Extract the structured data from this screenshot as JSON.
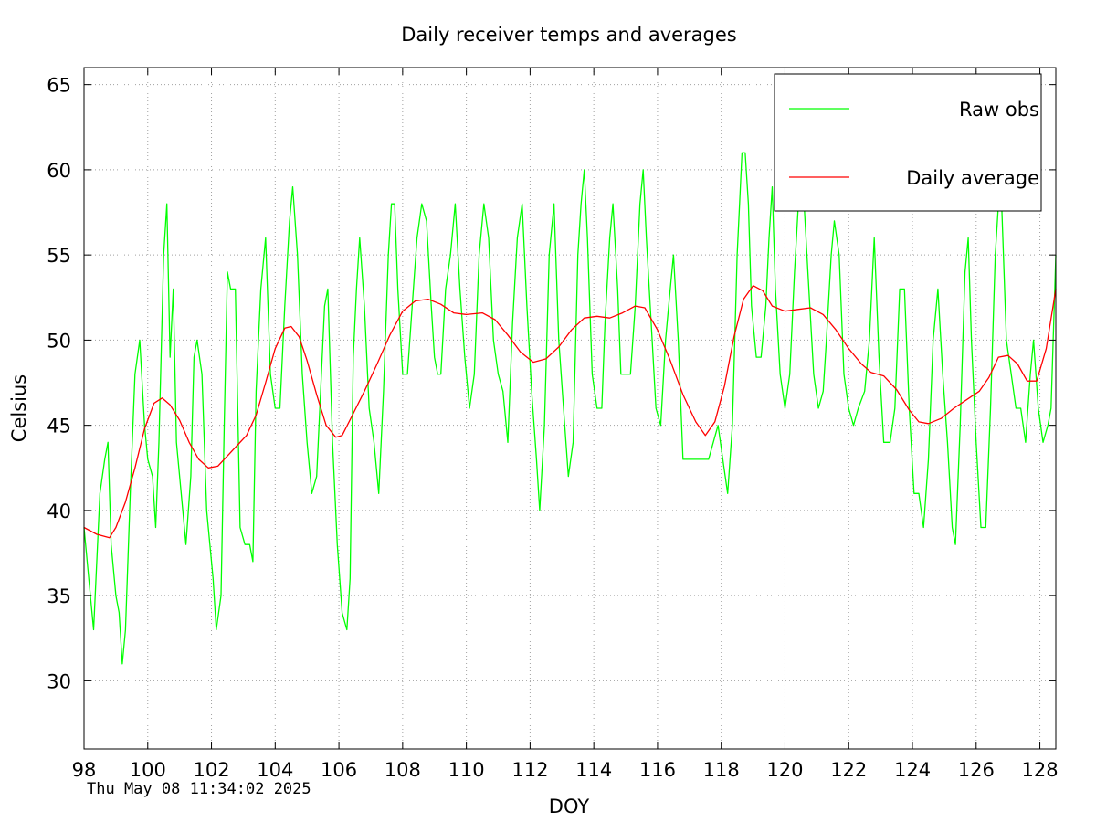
{
  "chart_data": {
    "type": "line",
    "title": "Daily receiver temps and averages",
    "xlabel": "DOY",
    "ylabel": "Celsius",
    "timestamp": "Thu May 08 11:34:02 2025",
    "xlim": [
      98,
      128.5
    ],
    "ylim": [
      26,
      66
    ],
    "xticks": [
      98,
      100,
      102,
      104,
      106,
      108,
      110,
      112,
      114,
      116,
      118,
      120,
      122,
      124,
      126,
      128
    ],
    "yticks": [
      30,
      35,
      40,
      45,
      50,
      55,
      60,
      65
    ],
    "grid": true,
    "legend_position": "top-right",
    "series": [
      {
        "name": "Raw obs",
        "color": "#00ff00",
        "points": [
          [
            98.0,
            39
          ],
          [
            98.15,
            36
          ],
          [
            98.3,
            33
          ],
          [
            98.5,
            41
          ],
          [
            98.65,
            43
          ],
          [
            98.75,
            44
          ],
          [
            98.85,
            38
          ],
          [
            99.0,
            35
          ],
          [
            99.1,
            34
          ],
          [
            99.2,
            31
          ],
          [
            99.3,
            33
          ],
          [
            99.45,
            41
          ],
          [
            99.6,
            48
          ],
          [
            99.75,
            50
          ],
          [
            99.9,
            45
          ],
          [
            100.0,
            43
          ],
          [
            100.15,
            42
          ],
          [
            100.25,
            39
          ],
          [
            100.35,
            44
          ],
          [
            100.5,
            55
          ],
          [
            100.6,
            58
          ],
          [
            100.7,
            49
          ],
          [
            100.8,
            53
          ],
          [
            100.9,
            44
          ],
          [
            101.05,
            41
          ],
          [
            101.2,
            38
          ],
          [
            101.35,
            42
          ],
          [
            101.45,
            49
          ],
          [
            101.55,
            50
          ],
          [
            101.7,
            48
          ],
          [
            101.85,
            40
          ],
          [
            101.95,
            38
          ],
          [
            102.05,
            36
          ],
          [
            102.15,
            33
          ],
          [
            102.3,
            35
          ],
          [
            102.4,
            45
          ],
          [
            102.5,
            54
          ],
          [
            102.6,
            53
          ],
          [
            102.75,
            53
          ],
          [
            102.9,
            39
          ],
          [
            103.05,
            38
          ],
          [
            103.2,
            38
          ],
          [
            103.3,
            37
          ],
          [
            103.4,
            47
          ],
          [
            103.55,
            53
          ],
          [
            103.7,
            56
          ],
          [
            103.85,
            48
          ],
          [
            104.0,
            46
          ],
          [
            104.15,
            46
          ],
          [
            104.3,
            52
          ],
          [
            104.45,
            57
          ],
          [
            104.55,
            59
          ],
          [
            104.7,
            55
          ],
          [
            104.85,
            48
          ],
          [
            105.0,
            44
          ],
          [
            105.15,
            41
          ],
          [
            105.3,
            42
          ],
          [
            105.45,
            48
          ],
          [
            105.55,
            52
          ],
          [
            105.65,
            53
          ],
          [
            105.8,
            44
          ],
          [
            105.95,
            38
          ],
          [
            106.1,
            34
          ],
          [
            106.25,
            33
          ],
          [
            106.35,
            36
          ],
          [
            106.45,
            49
          ],
          [
            106.55,
            53
          ],
          [
            106.65,
            56
          ],
          [
            106.8,
            52
          ],
          [
            106.95,
            46
          ],
          [
            107.1,
            44
          ],
          [
            107.25,
            41
          ],
          [
            107.4,
            47
          ],
          [
            107.55,
            55
          ],
          [
            107.65,
            58
          ],
          [
            107.75,
            58
          ],
          [
            107.85,
            53
          ],
          [
            108.0,
            48
          ],
          [
            108.15,
            48
          ],
          [
            108.3,
            52
          ],
          [
            108.45,
            56
          ],
          [
            108.6,
            58
          ],
          [
            108.75,
            57
          ],
          [
            108.9,
            52
          ],
          [
            109.0,
            49
          ],
          [
            109.1,
            48
          ],
          [
            109.2,
            48
          ],
          [
            109.35,
            53
          ],
          [
            109.5,
            55
          ],
          [
            109.65,
            58
          ],
          [
            109.8,
            53
          ],
          [
            109.95,
            49
          ],
          [
            110.1,
            46
          ],
          [
            110.25,
            48
          ],
          [
            110.4,
            55
          ],
          [
            110.55,
            58
          ],
          [
            110.7,
            56
          ],
          [
            110.85,
            50
          ],
          [
            111.0,
            48
          ],
          [
            111.15,
            47
          ],
          [
            111.3,
            44
          ],
          [
            111.45,
            51
          ],
          [
            111.6,
            56
          ],
          [
            111.75,
            58
          ],
          [
            111.9,
            52
          ],
          [
            112.05,
            47
          ],
          [
            112.2,
            43
          ],
          [
            112.3,
            40
          ],
          [
            112.45,
            45
          ],
          [
            112.6,
            55
          ],
          [
            112.75,
            58
          ],
          [
            112.9,
            50
          ],
          [
            113.05,
            46
          ],
          [
            113.2,
            42
          ],
          [
            113.35,
            44
          ],
          [
            113.5,
            55
          ],
          [
            113.6,
            58
          ],
          [
            113.7,
            60
          ],
          [
            113.8,
            56
          ],
          [
            113.95,
            48
          ],
          [
            114.1,
            46
          ],
          [
            114.25,
            46
          ],
          [
            114.35,
            51
          ],
          [
            114.5,
            56
          ],
          [
            114.6,
            58
          ],
          [
            114.75,
            53
          ],
          [
            114.85,
            48
          ],
          [
            115.0,
            48
          ],
          [
            115.15,
            48
          ],
          [
            115.3,
            52
          ],
          [
            115.45,
            58
          ],
          [
            115.55,
            60
          ],
          [
            115.65,
            56
          ],
          [
            115.8,
            51
          ],
          [
            115.95,
            46
          ],
          [
            116.1,
            45
          ],
          [
            116.25,
            50
          ],
          [
            116.35,
            52
          ],
          [
            116.5,
            55
          ],
          [
            116.65,
            50
          ],
          [
            116.8,
            43
          ],
          [
            116.95,
            43
          ],
          [
            117.1,
            43
          ],
          [
            117.3,
            43
          ],
          [
            117.45,
            43
          ],
          [
            117.6,
            43
          ],
          [
            117.75,
            44
          ],
          [
            117.9,
            45
          ],
          [
            118.05,
            43
          ],
          [
            118.2,
            41
          ],
          [
            118.35,
            45
          ],
          [
            118.5,
            55
          ],
          [
            118.65,
            61
          ],
          [
            118.75,
            61
          ],
          [
            118.85,
            58
          ],
          [
            118.95,
            52
          ],
          [
            119.1,
            49
          ],
          [
            119.25,
            49
          ],
          [
            119.4,
            52
          ],
          [
            119.5,
            56
          ],
          [
            119.6,
            59
          ],
          [
            119.7,
            53
          ],
          [
            119.85,
            48
          ],
          [
            120.0,
            46
          ],
          [
            120.15,
            48
          ],
          [
            120.3,
            54
          ],
          [
            120.45,
            59
          ],
          [
            120.6,
            58
          ],
          [
            120.75,
            53
          ],
          [
            120.9,
            48
          ],
          [
            121.05,
            46
          ],
          [
            121.2,
            47
          ],
          [
            121.3,
            50
          ],
          [
            121.45,
            55
          ],
          [
            121.55,
            57
          ],
          [
            121.7,
            55
          ],
          [
            121.85,
            48
          ],
          [
            122.0,
            46
          ],
          [
            122.15,
            45
          ],
          [
            122.3,
            46
          ],
          [
            122.5,
            47
          ],
          [
            122.65,
            50
          ],
          [
            122.8,
            56
          ],
          [
            122.95,
            49
          ],
          [
            123.1,
            44
          ],
          [
            123.3,
            44
          ],
          [
            123.45,
            46
          ],
          [
            123.6,
            53
          ],
          [
            123.75,
            53
          ],
          [
            123.9,
            46
          ],
          [
            124.05,
            41
          ],
          [
            124.2,
            41
          ],
          [
            124.35,
            39
          ],
          [
            124.5,
            43
          ],
          [
            124.65,
            50
          ],
          [
            124.8,
            53
          ],
          [
            124.95,
            48
          ],
          [
            125.1,
            44
          ],
          [
            125.25,
            39
          ],
          [
            125.35,
            38
          ],
          [
            125.5,
            45
          ],
          [
            125.65,
            54
          ],
          [
            125.75,
            56
          ],
          [
            125.85,
            50
          ],
          [
            126.0,
            44
          ],
          [
            126.15,
            39
          ],
          [
            126.3,
            39
          ],
          [
            126.45,
            46
          ],
          [
            126.6,
            55
          ],
          [
            126.7,
            58
          ],
          [
            126.8,
            58
          ],
          [
            126.95,
            50
          ],
          [
            127.1,
            48
          ],
          [
            127.25,
            46
          ],
          [
            127.4,
            46
          ],
          [
            127.55,
            44
          ],
          [
            127.7,
            48
          ],
          [
            127.8,
            50
          ],
          [
            127.95,
            46
          ],
          [
            128.1,
            44
          ],
          [
            128.25,
            45
          ],
          [
            128.35,
            46
          ],
          [
            128.5,
            55
          ]
        ]
      },
      {
        "name": "Daily average",
        "color": "#ff0000",
        "points": [
          [
            98.0,
            39.0
          ],
          [
            98.4,
            38.6
          ],
          [
            98.8,
            38.4
          ],
          [
            99.0,
            39.0
          ],
          [
            99.3,
            40.5
          ],
          [
            99.6,
            42.5
          ],
          [
            99.9,
            44.8
          ],
          [
            100.2,
            46.3
          ],
          [
            100.45,
            46.6
          ],
          [
            100.7,
            46.2
          ],
          [
            101.0,
            45.3
          ],
          [
            101.3,
            44.0
          ],
          [
            101.6,
            43.0
          ],
          [
            101.9,
            42.5
          ],
          [
            102.2,
            42.6
          ],
          [
            102.5,
            43.2
          ],
          [
            102.8,
            43.8
          ],
          [
            103.1,
            44.4
          ],
          [
            103.4,
            45.6
          ],
          [
            103.7,
            47.5
          ],
          [
            104.0,
            49.5
          ],
          [
            104.3,
            50.7
          ],
          [
            104.5,
            50.8
          ],
          [
            104.75,
            50.2
          ],
          [
            105.0,
            48.8
          ],
          [
            105.3,
            46.8
          ],
          [
            105.6,
            45.0
          ],
          [
            105.9,
            44.3
          ],
          [
            106.1,
            44.4
          ],
          [
            106.4,
            45.5
          ],
          [
            106.8,
            47.0
          ],
          [
            107.2,
            48.6
          ],
          [
            107.6,
            50.3
          ],
          [
            108.0,
            51.7
          ],
          [
            108.4,
            52.3
          ],
          [
            108.8,
            52.4
          ],
          [
            109.2,
            52.1
          ],
          [
            109.6,
            51.6
          ],
          [
            110.0,
            51.5
          ],
          [
            110.5,
            51.6
          ],
          [
            110.9,
            51.2
          ],
          [
            111.3,
            50.3
          ],
          [
            111.7,
            49.3
          ],
          [
            112.1,
            48.7
          ],
          [
            112.5,
            48.9
          ],
          [
            112.9,
            49.6
          ],
          [
            113.3,
            50.6
          ],
          [
            113.7,
            51.3
          ],
          [
            114.1,
            51.4
          ],
          [
            114.5,
            51.3
          ],
          [
            114.9,
            51.6
          ],
          [
            115.3,
            52.0
          ],
          [
            115.6,
            51.9
          ],
          [
            116.0,
            50.6
          ],
          [
            116.4,
            48.8
          ],
          [
            116.8,
            46.8
          ],
          [
            117.2,
            45.2
          ],
          [
            117.5,
            44.4
          ],
          [
            117.8,
            45.2
          ],
          [
            118.1,
            47.3
          ],
          [
            118.4,
            50.2
          ],
          [
            118.7,
            52.4
          ],
          [
            119.0,
            53.2
          ],
          [
            119.3,
            52.9
          ],
          [
            119.6,
            52.0
          ],
          [
            120.0,
            51.7
          ],
          [
            120.4,
            51.8
          ],
          [
            120.8,
            51.9
          ],
          [
            121.2,
            51.5
          ],
          [
            121.6,
            50.6
          ],
          [
            122.0,
            49.5
          ],
          [
            122.4,
            48.6
          ],
          [
            122.7,
            48.1
          ],
          [
            123.1,
            47.9
          ],
          [
            123.5,
            47.1
          ],
          [
            123.9,
            45.9
          ],
          [
            124.2,
            45.2
          ],
          [
            124.5,
            45.1
          ],
          [
            124.9,
            45.4
          ],
          [
            125.3,
            46.0
          ],
          [
            125.7,
            46.5
          ],
          [
            126.1,
            47.0
          ],
          [
            126.4,
            47.8
          ],
          [
            126.7,
            49.0
          ],
          [
            127.0,
            49.1
          ],
          [
            127.3,
            48.6
          ],
          [
            127.6,
            47.6
          ],
          [
            127.9,
            47.6
          ],
          [
            128.2,
            49.5
          ],
          [
            128.5,
            53.0
          ]
        ]
      }
    ]
  }
}
